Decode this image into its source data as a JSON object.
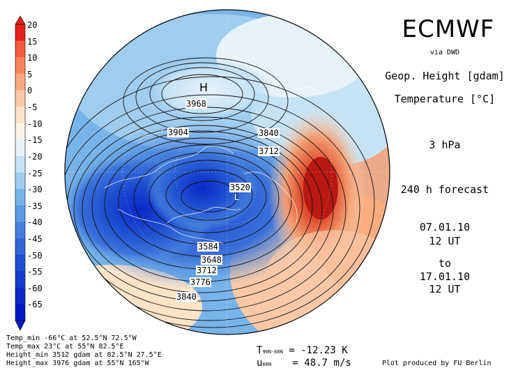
{
  "header": {
    "brand": "ECMWF",
    "source": "via DWD",
    "field1": "Geop. Height [gdam]",
    "field2": "Temperature [°C]",
    "level": "3 hPa",
    "forecast": "240 h forecast",
    "init_date": "07.01.10",
    "init_time": "12 UT",
    "to": "to",
    "valid_date": "17.01.10",
    "valid_time": "12 UT"
  },
  "colorbar": {
    "labels": [
      "20",
      "15",
      "10",
      "5",
      "0",
      "-5",
      "-10",
      "-15",
      "-20",
      "-25",
      "-30",
      "-35",
      "-40",
      "-45",
      "-50",
      "-55",
      "-60",
      "-65"
    ],
    "colors": [
      "#e8201a",
      "#f25a3c",
      "#f78459",
      "#f9a97e",
      "#fbc9a6",
      "#fde3c8",
      "#fef4e6",
      "#e6f3fb",
      "#c5e3f5",
      "#9fcdef",
      "#79b4e9",
      "#5b9be3",
      "#447fdc",
      "#2f65d6",
      "#1f4ed1",
      "#143ccd",
      "#0b2ac9",
      "#0018c4"
    ]
  },
  "map": {
    "contour_labels": [
      {
        "text": "3968"
      },
      {
        "text": "3904"
      },
      {
        "text": "3840"
      },
      {
        "text": "3712"
      },
      {
        "text": "3520"
      },
      {
        "text": "3584"
      },
      {
        "text": "3648"
      },
      {
        "text": "3712"
      },
      {
        "text": "3776"
      },
      {
        "text": "3840"
      }
    ],
    "high_marker": "H",
    "low_marker": "L"
  },
  "footer": {
    "temp_min": "Temp_min -66°C at 52.5°N 72.5°W",
    "temp_max": "Temp_max 23°C at 55°N 82.5°E",
    "height_min": "Height_min 3512 gdam at 82.5°N 27.5°E",
    "height_max": "Height_max 3976 gdam at 55°N 165°W"
  },
  "stats": {
    "t_symbol": "T",
    "t_sub": "90N-60N",
    "t_value": "= -12.23 K",
    "u_symbol": "u",
    "u_sub": "60N",
    "u_value": "= 48.7 m/s"
  },
  "credit": "Plot produced by FU Berlin"
}
